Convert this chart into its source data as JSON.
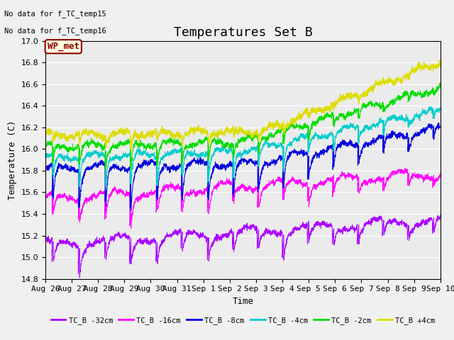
{
  "title": "Temperatures Set B",
  "xlabel": "Time",
  "ylabel": "Temperature (C)",
  "ylim": [
    14.8,
    17.0
  ],
  "annotation_lines": [
    "No data for f_TC_temp15",
    "No data for f_TC_temp16"
  ],
  "wp_met_label": "WP_met",
  "legend_entries": [
    "TC_B -32cm",
    "TC_B -16cm",
    "TC_B -8cm",
    "TC_B -4cm",
    "TC_B -2cm",
    "TC_B +4cm"
  ],
  "line_colors": [
    "#aa00ff",
    "#ff00ff",
    "#0000dd",
    "#00cccc",
    "#00dd00",
    "#dddd00"
  ],
  "background_color": "#ebebeb",
  "grid_color": "#ffffff",
  "title_fontsize": 13,
  "label_fontsize": 9,
  "tick_fontsize": 8,
  "xtick_labels": [
    "Aug 26",
    "Aug 27",
    "Aug 28",
    "Aug 29",
    "Aug 30",
    "Aug 31",
    "Sep 1",
    "Sep 2",
    "Sep 3",
    "Sep 4",
    "Sep 5",
    "Sep 6",
    "Sep 7",
    "Sep 8",
    "Sep 9",
    "Sep 10"
  ]
}
